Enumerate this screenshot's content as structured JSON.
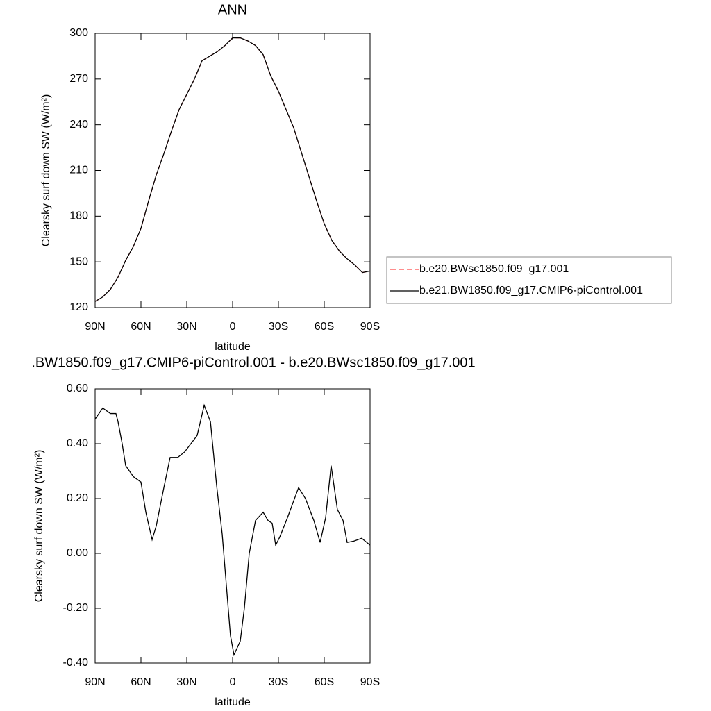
{
  "chart_data": [
    {
      "type": "line",
      "title": "ANN",
      "x_label": "latitude",
      "y_label": "Clearsky surf down SW (W/m²)",
      "x": [
        90,
        85,
        80,
        75,
        70,
        65,
        60,
        55,
        50,
        45,
        40,
        35,
        30,
        25,
        20,
        15,
        10,
        5,
        0,
        -5,
        -10,
        -15,
        -20,
        -25,
        -30,
        -35,
        -40,
        -45,
        -50,
        -55,
        -60,
        -65,
        -70,
        -75,
        -80,
        -85,
        -90
      ],
      "series": [
        {
          "name": "b.e20.BWsc1850.f09_g17.001",
          "color": "#ff4a4a",
          "line_style": "dashed",
          "values": [
            124,
            127,
            132,
            140,
            151,
            160,
            172,
            190,
            207,
            221,
            236,
            250,
            260,
            270,
            282,
            285,
            288,
            292,
            297,
            297,
            295,
            292,
            286,
            272,
            262,
            250,
            238,
            222,
            206,
            190,
            175,
            164,
            157,
            152,
            148,
            143,
            144
          ]
        },
        {
          "name": "b.e21.BW1850.f09_g17.CMIP6-piControl.001",
          "color": "#000000",
          "line_style": "solid",
          "values": [
            124,
            127,
            132,
            140,
            151,
            160,
            172,
            190,
            207,
            221,
            236,
            250,
            260,
            270,
            282,
            285,
            288,
            292,
            297,
            297,
            295,
            292,
            286,
            272,
            262,
            250,
            238,
            222,
            206,
            190,
            175,
            164,
            157,
            152,
            148,
            143,
            144
          ]
        }
      ],
      "xlim": [
        90,
        -90
      ],
      "xticks": [
        {
          "value": 90,
          "label": "90N"
        },
        {
          "value": 60,
          "label": "60N"
        },
        {
          "value": 30,
          "label": "30N"
        },
        0,
        {
          "value": -30,
          "label": "30S"
        },
        {
          "value": -60,
          "label": "60S"
        },
        {
          "value": -90,
          "label": "90S"
        }
      ],
      "ylim": [
        120,
        300
      ],
      "yticks": [
        120,
        150,
        180,
        210,
        240,
        270,
        300
      ],
      "legend": "right"
    },
    {
      "type": "line",
      "title": ".BW1850.f09_g17.CMIP6-piControl.001 - b.e20.BWsc1850.f09_g17.001",
      "x_label": "latitude",
      "y_label": "Clearsky surf down SW (W/m²)",
      "x": [
        90,
        85,
        80,
        76.4,
        75,
        72.3,
        70,
        65,
        60,
        56.8,
        52.7,
        50,
        45,
        40.9,
        35.9,
        31.4,
        27.3,
        23.2,
        18.6,
        14.5,
        10.5,
        6.8,
        3.6,
        1.4,
        -0.9,
        -5,
        -7.7,
        -10.9,
        -15,
        -20,
        -23.2,
        -25.9,
        -28.2,
        -30.9,
        -35.9,
        -43.2,
        -47.7,
        -53.2,
        -57.3,
        -60.9,
        -64.5,
        -68.6,
        -72.3,
        -75,
        -79.5,
        -84.5,
        -90
      ],
      "values": [
        0.49,
        0.53,
        0.51,
        0.51,
        0.48,
        0.4,
        0.32,
        0.28,
        0.26,
        0.15,
        0.05,
        0.1,
        0.24,
        0.35,
        0.35,
        0.37,
        0.4,
        0.43,
        0.54,
        0.48,
        0.25,
        0.07,
        -0.15,
        -0.3,
        -0.37,
        -0.32,
        -0.2,
        0.0,
        0.12,
        0.15,
        0.12,
        0.11,
        0.03,
        0.06,
        0.13,
        0.24,
        0.2,
        0.12,
        0.04,
        0.13,
        0.32,
        0.16,
        0.12,
        0.04,
        0.045,
        0.055,
        0.03
      ],
      "color": "#000000",
      "xlim": [
        90,
        -90
      ],
      "xticks": [
        {
          "value": 90,
          "label": "90N"
        },
        {
          "value": 60,
          "label": "60N"
        },
        {
          "value": 30,
          "label": "30N"
        },
        0,
        {
          "value": -30,
          "label": "30S"
        },
        {
          "value": -60,
          "label": "60S"
        },
        {
          "value": -90,
          "label": "90S"
        }
      ],
      "ylim": [
        -0.4,
        0.6
      ],
      "yticks": [
        {
          "value": -0.4,
          "label": "-0.40"
        },
        {
          "value": -0.2,
          "label": "-0.20"
        },
        {
          "value": 0,
          "label": "0.00"
        },
        {
          "value": 0.2,
          "label": "0.20"
        },
        {
          "value": 0.4,
          "label": "0.40"
        },
        {
          "value": 0.6,
          "label": "0.60"
        }
      ]
    }
  ]
}
